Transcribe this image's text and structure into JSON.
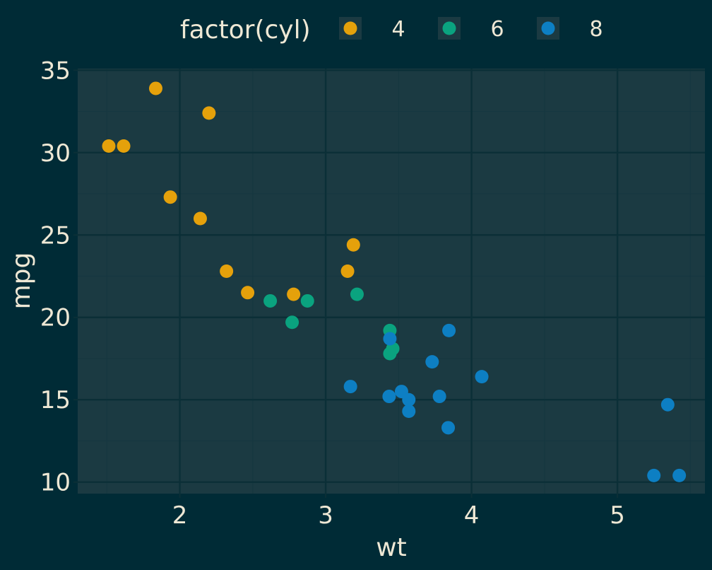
{
  "chart_data": {
    "type": "scatter",
    "xlabel": "wt",
    "ylabel": "mpg",
    "xlim": [
      1.3,
      5.6
    ],
    "ylim": [
      9.3,
      35.1
    ],
    "x_ticks": [
      2,
      3,
      4,
      5
    ],
    "y_ticks": [
      10,
      15,
      20,
      25,
      30,
      35
    ],
    "grid": true,
    "legend": {
      "title": "factor(cyl)",
      "position": "top"
    },
    "colors": {
      "background": "#002b36",
      "panel": "#1b3a42",
      "grid_major": "#0b2f37",
      "grid_minor": "#163740",
      "text": "#eee8d5"
    },
    "series": [
      {
        "name": "4",
        "color": "#e5a10b",
        "points": [
          [
            2.32,
            22.8
          ],
          [
            3.19,
            24.4
          ],
          [
            3.15,
            22.8
          ],
          [
            2.2,
            32.4
          ],
          [
            1.615,
            30.4
          ],
          [
            1.835,
            33.9
          ],
          [
            2.465,
            21.5
          ],
          [
            1.935,
            27.3
          ],
          [
            2.14,
            26.0
          ],
          [
            1.513,
            30.4
          ],
          [
            2.78,
            21.4
          ]
        ]
      },
      {
        "name": "6",
        "color": "#0aa37f",
        "points": [
          [
            2.62,
            21.0
          ],
          [
            2.875,
            21.0
          ],
          [
            3.215,
            21.4
          ],
          [
            3.46,
            18.1
          ],
          [
            3.44,
            19.2
          ],
          [
            3.44,
            17.8
          ],
          [
            2.77,
            19.7
          ]
        ]
      },
      {
        "name": "8",
        "color": "#0d7fc3",
        "points": [
          [
            3.44,
            18.7
          ],
          [
            3.57,
            14.3
          ],
          [
            4.07,
            16.4
          ],
          [
            3.73,
            17.3
          ],
          [
            3.78,
            15.2
          ],
          [
            5.25,
            10.4
          ],
          [
            5.424,
            10.4
          ],
          [
            5.345,
            14.7
          ],
          [
            3.52,
            15.5
          ],
          [
            3.435,
            15.2
          ],
          [
            3.84,
            13.3
          ],
          [
            3.845,
            19.2
          ],
          [
            3.17,
            15.8
          ],
          [
            3.57,
            15.0
          ]
        ]
      }
    ]
  }
}
